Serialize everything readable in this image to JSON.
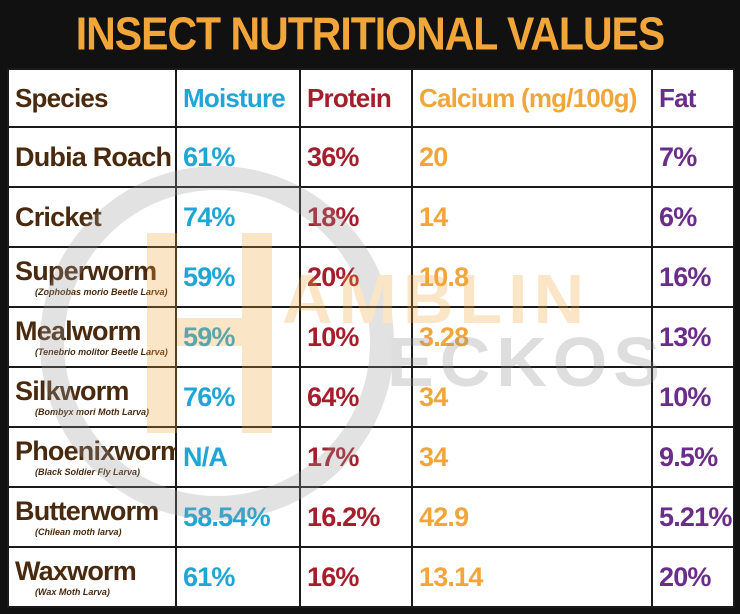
{
  "title": "INSECT NUTRITIONAL VALUES",
  "colors": {
    "background": "#111111",
    "title": "#f2a63a",
    "species": "#4a2a0e",
    "moisture": "#1fa6d6",
    "protein": "#a51e2b",
    "calcium": "#f2a63a",
    "fat": "#6a2d8a"
  },
  "watermark": {
    "line1": "AMBLIN",
    "line2": "ECKOS"
  },
  "headers": {
    "species": "Species",
    "moisture": "Moisture",
    "protein": "Protein",
    "calcium": "Calcium (mg/100g)",
    "fat": "Fat"
  },
  "rows": [
    {
      "species": "Dubia Roach",
      "scientific": "",
      "moisture": "61%",
      "protein": "36%",
      "calcium": "20",
      "fat": "7%"
    },
    {
      "species": "Cricket",
      "scientific": "",
      "moisture": "74%",
      "protein": "18%",
      "calcium": "14",
      "fat": "6%"
    },
    {
      "species": "Superworm",
      "scientific": "(Zophobas morio Beetle Larva)",
      "moisture": "59%",
      "protein": "20%",
      "calcium": "10.8",
      "fat": "16%"
    },
    {
      "species": "Mealworm",
      "scientific": "(Tenebrio molitor Beetle Larva)",
      "moisture": "59%",
      "protein": "10%",
      "calcium": "3.28",
      "fat": "13%"
    },
    {
      "species": "Silkworm",
      "scientific": "(Bombyx mori Moth Larva)",
      "moisture": "76%",
      "protein": "64%",
      "calcium": "34",
      "fat": "10%"
    },
    {
      "species": "Phoenixworm",
      "scientific": "(Black Soldier Fly Larva)",
      "moisture": "N/A",
      "protein": "17%",
      "calcium": "34",
      "fat": "9.5%"
    },
    {
      "species": "Butterworm",
      "scientific": "(Chilean moth larva)",
      "moisture": "58.54%",
      "protein": "16.2%",
      "calcium": "42.9",
      "fat": "5.21%"
    },
    {
      "species": "Waxworm",
      "scientific": "(Wax Moth Larva)",
      "moisture": "61%",
      "protein": "16%",
      "calcium": "13.14",
      "fat": "20%"
    }
  ]
}
